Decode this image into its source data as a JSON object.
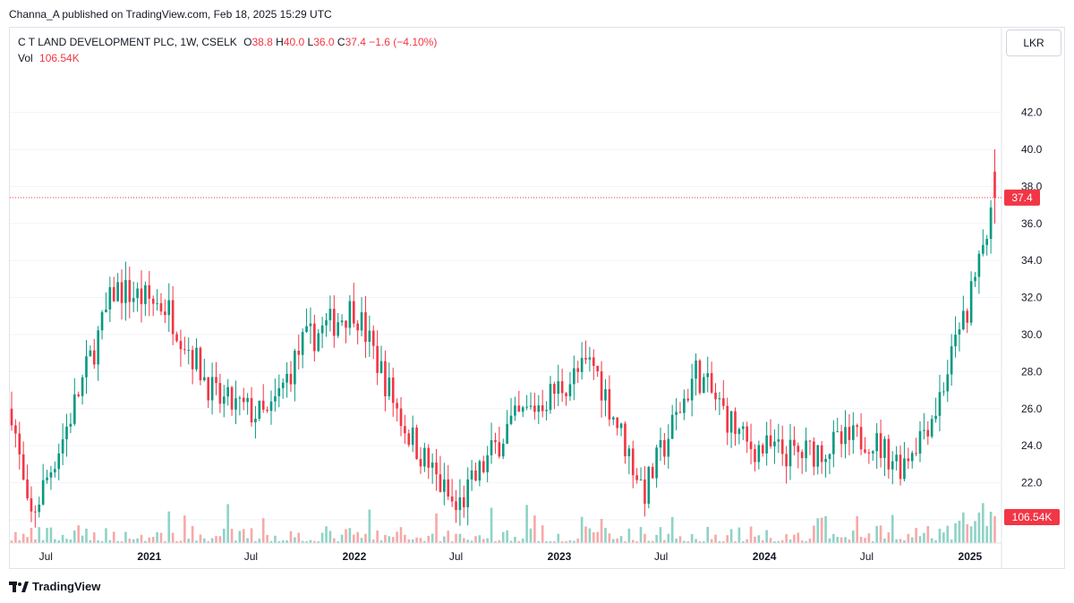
{
  "header": {
    "published": "Channa_A published on TradingView.com, Feb 18, 2025 15:29 UTC"
  },
  "legend": {
    "title": "C T LAND DEVELOPMENT PLC, 1W, CSELK",
    "o_key": "O",
    "o_val": "38.8",
    "h_key": "H",
    "h_val": "40.0",
    "l_key": "L",
    "l_val": "36.0",
    "c_key": "C",
    "c_val": "37.4",
    "change": "−1.6 (−4.10%)",
    "vol_key": "Vol",
    "vol_val": "106.54K"
  },
  "unit": "LKR",
  "footer": {
    "brand": "TradingView"
  },
  "colors": {
    "up": "#089981",
    "down": "#f23645",
    "up_vol": "#8fd3c6",
    "down_vol": "#f7a9a7"
  },
  "chart_data": {
    "type": "candlestick",
    "interval": "1W",
    "ylim": [
      18.0,
      43.0
    ],
    "y_ticks": [
      "42.0",
      "40.0",
      "38.0",
      "36.0",
      "34.0",
      "32.0",
      "30.0",
      "28.0",
      "26.0",
      "24.0",
      "22.0",
      "20.0"
    ],
    "x_ticks": [
      "Jul",
      "2021",
      "Jul",
      "2022",
      "Jul",
      "2023",
      "Jul",
      "2024",
      "Jul",
      "2025"
    ],
    "last_price": 37.4,
    "last_price_label": "37.4",
    "last_volume_label": "106.54K",
    "key_points": [
      {
        "date": "2020-05",
        "close": 26.0
      },
      {
        "date": "2020-06",
        "close": 19.8
      },
      {
        "date": "2020-08",
        "close": 24.5
      },
      {
        "date": "2020-11",
        "close": 32.5
      },
      {
        "date": "2021-02",
        "close": 31.5
      },
      {
        "date": "2021-05",
        "close": 26.5
      },
      {
        "date": "2021-08",
        "close": 25.5
      },
      {
        "date": "2021-10",
        "close": 29.5
      },
      {
        "date": "2022-01",
        "close": 31.5
      },
      {
        "date": "2022-04",
        "close": 25.0
      },
      {
        "date": "2022-07",
        "close": 20.5
      },
      {
        "date": "2022-10",
        "close": 25.0
      },
      {
        "date": "2023-03",
        "close": 28.5
      },
      {
        "date": "2023-06",
        "close": 21.5
      },
      {
        "date": "2023-09",
        "close": 28.0
      },
      {
        "date": "2023-12",
        "close": 24.0
      },
      {
        "date": "2024-03",
        "close": 23.5
      },
      {
        "date": "2024-07",
        "close": 24.5
      },
      {
        "date": "2024-09",
        "close": 23.0
      },
      {
        "date": "2024-11",
        "close": 26.0
      },
      {
        "date": "2025-01",
        "close": 32.0
      },
      {
        "date": "2025-02",
        "close": 37.4
      }
    ]
  }
}
